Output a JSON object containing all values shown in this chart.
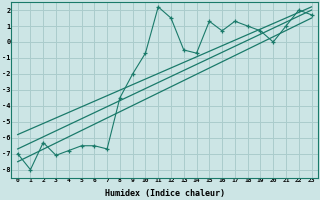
{
  "title": "",
  "xlabel": "Humidex (Indice chaleur)",
  "bg_color": "#cce5e5",
  "grid_color": "#aacccc",
  "line_color": "#1a7a6a",
  "xlim": [
    -0.5,
    23.5
  ],
  "ylim": [
    -8.5,
    2.5
  ],
  "xticks": [
    0,
    1,
    2,
    3,
    4,
    5,
    6,
    7,
    8,
    9,
    10,
    11,
    12,
    13,
    14,
    15,
    16,
    17,
    18,
    19,
    20,
    21,
    22,
    23
  ],
  "yticks": [
    -8,
    -7,
    -6,
    -5,
    -4,
    -3,
    -2,
    -1,
    0,
    1,
    2
  ],
  "scatter_x": [
    0,
    1,
    2,
    3,
    4,
    5,
    6,
    7,
    8,
    9,
    10,
    11,
    12,
    13,
    14,
    15,
    16,
    17,
    18,
    19,
    20,
    21,
    22,
    23
  ],
  "scatter_y": [
    -7,
    -8,
    -6.3,
    -7.1,
    -6.8,
    -6.5,
    -6.5,
    -6.7,
    -3.5,
    -2.0,
    -0.7,
    2.2,
    1.5,
    -0.5,
    -0.7,
    1.3,
    0.7,
    1.3,
    1.0,
    0.7,
    0.0,
    1.0,
    2.0,
    1.7
  ],
  "reg_line1": {
    "x": [
      0,
      23
    ],
    "y": [
      -7.5,
      1.5
    ]
  },
  "reg_line2": {
    "x": [
      0,
      23
    ],
    "y": [
      -6.7,
      2.0
    ]
  },
  "reg_line3": {
    "x": [
      0,
      23
    ],
    "y": [
      -5.8,
      2.2
    ]
  }
}
